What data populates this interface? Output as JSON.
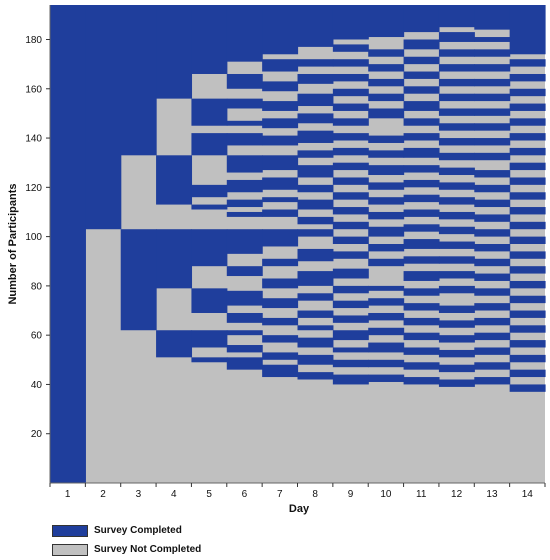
{
  "chart_data": {
    "type": "heatmap",
    "title": "",
    "xlabel": "Day",
    "ylabel": "Number of Participants",
    "x": [
      1,
      2,
      3,
      4,
      5,
      6,
      7,
      8,
      9,
      10,
      11,
      12,
      13,
      14
    ],
    "xticks": [
      "1",
      "2",
      "3",
      "4",
      "5",
      "6",
      "7",
      "8",
      "9",
      "10",
      "11",
      "12",
      "13",
      "14"
    ],
    "ylim": [
      0,
      194
    ],
    "yticks": [
      "20",
      "40",
      "60",
      "80",
      "100",
      "120",
      "140",
      "160",
      "180"
    ],
    "ytick_values": [
      20,
      40,
      60,
      80,
      100,
      120,
      140,
      160,
      180
    ],
    "colors": {
      "completed": "#1f3e9c",
      "not_completed": "#c0c0c0"
    },
    "legend_position": "bottom-left",
    "series": [
      {
        "name": "Survey Completed",
        "color": "#1f3e9c"
      },
      {
        "name": "Survey Not Completed",
        "color": "#c0c0c0"
      }
    ],
    "columns": [
      {
        "day": 1,
        "completed": [
          [
            0,
            194
          ]
        ]
      },
      {
        "day": 2,
        "completed": [
          [
            103,
            194
          ]
        ]
      },
      {
        "day": 3,
        "completed": [
          [
            62,
            103
          ],
          [
            133,
            194
          ]
        ]
      },
      {
        "day": 4,
        "completed": [
          [
            51,
            62
          ],
          [
            79,
            103
          ],
          [
            113,
            133
          ],
          [
            156,
            194
          ]
        ]
      },
      {
        "day": 5,
        "completed": [
          [
            49,
            51
          ],
          [
            55,
            62
          ],
          [
            69,
            79
          ],
          [
            88,
            103
          ],
          [
            111,
            113
          ],
          [
            116,
            121
          ],
          [
            133,
            142
          ],
          [
            145,
            156
          ],
          [
            166,
            194
          ]
        ]
      },
      {
        "day": 6,
        "completed": [
          [
            46,
            51
          ],
          [
            53,
            56
          ],
          [
            60,
            62
          ],
          [
            65,
            69
          ],
          [
            72,
            78
          ],
          [
            84,
            88
          ],
          [
            93,
            103
          ],
          [
            108,
            110
          ],
          [
            112,
            115
          ],
          [
            118,
            123
          ],
          [
            126,
            133
          ],
          [
            137,
            142
          ],
          [
            145,
            147
          ],
          [
            152,
            156
          ],
          [
            160,
            166
          ],
          [
            171,
            194
          ]
        ]
      },
      {
        "day": 7,
        "completed": [
          [
            43,
            48
          ],
          [
            50,
            53
          ],
          [
            57,
            60
          ],
          [
            64,
            67
          ],
          [
            71,
            75
          ],
          [
            79,
            83
          ],
          [
            88,
            91
          ],
          [
            96,
            103
          ],
          [
            108,
            111
          ],
          [
            114,
            116
          ],
          [
            119,
            124
          ],
          [
            127,
            133
          ],
          [
            137,
            141
          ],
          [
            144,
            148
          ],
          [
            151,
            155
          ],
          [
            159,
            163
          ],
          [
            167,
            172
          ],
          [
            174,
            194
          ]
        ]
      },
      {
        "day": 8,
        "completed": [
          [
            42,
            45
          ],
          [
            48,
            52
          ],
          [
            55,
            59
          ],
          [
            62,
            64
          ],
          [
            67,
            70
          ],
          [
            74,
            77
          ],
          [
            80,
            86
          ],
          [
            90,
            95
          ],
          [
            100,
            103
          ],
          [
            105,
            108
          ],
          [
            111,
            115
          ],
          [
            118,
            121
          ],
          [
            124,
            129
          ],
          [
            132,
            135
          ],
          [
            138,
            143
          ],
          [
            146,
            150
          ],
          [
            153,
            158
          ],
          [
            162,
            166
          ],
          [
            169,
            172
          ],
          [
            177,
            194
          ]
        ]
      },
      {
        "day": 9,
        "completed": [
          [
            40,
            44
          ],
          [
            47,
            50
          ],
          [
            53,
            55
          ],
          [
            58,
            62
          ],
          [
            65,
            68
          ],
          [
            71,
            74
          ],
          [
            77,
            80
          ],
          [
            83,
            87
          ],
          [
            91,
            94
          ],
          [
            97,
            100
          ],
          [
            103,
            106
          ],
          [
            109,
            112
          ],
          [
            115,
            118
          ],
          [
            121,
            124
          ],
          [
            127,
            130
          ],
          [
            133,
            136
          ],
          [
            139,
            142
          ],
          [
            145,
            148
          ],
          [
            151,
            154
          ],
          [
            157,
            160
          ],
          [
            163,
            166
          ],
          [
            169,
            172
          ],
          [
            175,
            178
          ],
          [
            180,
            194
          ]
        ]
      },
      {
        "day": 10,
        "completed": [
          [
            41,
            44
          ],
          [
            47,
            50
          ],
          [
            53,
            57
          ],
          [
            60,
            63
          ],
          [
            66,
            69
          ],
          [
            72,
            75
          ],
          [
            78,
            80
          ],
          [
            88,
            91
          ],
          [
            94,
            97
          ],
          [
            100,
            104
          ],
          [
            107,
            110
          ],
          [
            113,
            116
          ],
          [
            119,
            122
          ],
          [
            125,
            129
          ],
          [
            132,
            135
          ],
          [
            138,
            141
          ],
          [
            148,
            152
          ],
          [
            155,
            158
          ],
          [
            161,
            164
          ],
          [
            167,
            170
          ],
          [
            173,
            176
          ],
          [
            181,
            194
          ]
        ]
      },
      {
        "day": 11,
        "completed": [
          [
            40,
            43
          ],
          [
            46,
            49
          ],
          [
            52,
            55
          ],
          [
            58,
            61
          ],
          [
            64,
            67
          ],
          [
            70,
            73
          ],
          [
            76,
            79
          ],
          [
            82,
            86
          ],
          [
            89,
            92
          ],
          [
            95,
            99
          ],
          [
            102,
            105
          ],
          [
            108,
            111
          ],
          [
            114,
            117
          ],
          [
            120,
            123
          ],
          [
            126,
            129
          ],
          [
            132,
            136
          ],
          [
            139,
            142
          ],
          [
            145,
            148
          ],
          [
            151,
            155
          ],
          [
            158,
            161
          ],
          [
            164,
            167
          ],
          [
            170,
            173
          ],
          [
            176,
            180
          ],
          [
            183,
            194
          ]
        ]
      },
      {
        "day": 12,
        "completed": [
          [
            39,
            42
          ],
          [
            45,
            48
          ],
          [
            51,
            54
          ],
          [
            57,
            60
          ],
          [
            63,
            66
          ],
          [
            69,
            72
          ],
          [
            77,
            80
          ],
          [
            83,
            86
          ],
          [
            89,
            92
          ],
          [
            95,
            98
          ],
          [
            101,
            104
          ],
          [
            107,
            110
          ],
          [
            113,
            116
          ],
          [
            119,
            122
          ],
          [
            125,
            128
          ],
          [
            131,
            134
          ],
          [
            137,
            140
          ],
          [
            143,
            146
          ],
          [
            149,
            152
          ],
          [
            155,
            158
          ],
          [
            161,
            164
          ],
          [
            167,
            170
          ],
          [
            173,
            176
          ],
          [
            179,
            183
          ],
          [
            185,
            194
          ]
        ]
      },
      {
        "day": 13,
        "completed": [
          [
            40,
            43
          ],
          [
            46,
            49
          ],
          [
            52,
            55
          ],
          [
            58,
            61
          ],
          [
            64,
            67
          ],
          [
            70,
            73
          ],
          [
            76,
            79
          ],
          [
            82,
            85
          ],
          [
            88,
            91
          ],
          [
            94,
            97
          ],
          [
            100,
            103
          ],
          [
            106,
            109
          ],
          [
            112,
            115
          ],
          [
            118,
            121
          ],
          [
            124,
            127
          ],
          [
            131,
            134
          ],
          [
            137,
            140
          ],
          [
            143,
            146
          ],
          [
            149,
            152
          ],
          [
            155,
            158
          ],
          [
            161,
            164
          ],
          [
            167,
            170
          ],
          [
            173,
            176
          ],
          [
            179,
            181
          ],
          [
            184,
            194
          ]
        ]
      },
      {
        "day": 14,
        "completed": [
          [
            37,
            40
          ],
          [
            43,
            46
          ],
          [
            49,
            52
          ],
          [
            55,
            58
          ],
          [
            61,
            64
          ],
          [
            67,
            70
          ],
          [
            73,
            76
          ],
          [
            79,
            82
          ],
          [
            85,
            88
          ],
          [
            91,
            94
          ],
          [
            97,
            100
          ],
          [
            103,
            106
          ],
          [
            109,
            112
          ],
          [
            115,
            118
          ],
          [
            121,
            124
          ],
          [
            127,
            130
          ],
          [
            133,
            136
          ],
          [
            139,
            142
          ],
          [
            145,
            148
          ],
          [
            151,
            154
          ],
          [
            157,
            160
          ],
          [
            163,
            166
          ],
          [
            169,
            172
          ],
          [
            174,
            194
          ]
        ]
      }
    ]
  }
}
